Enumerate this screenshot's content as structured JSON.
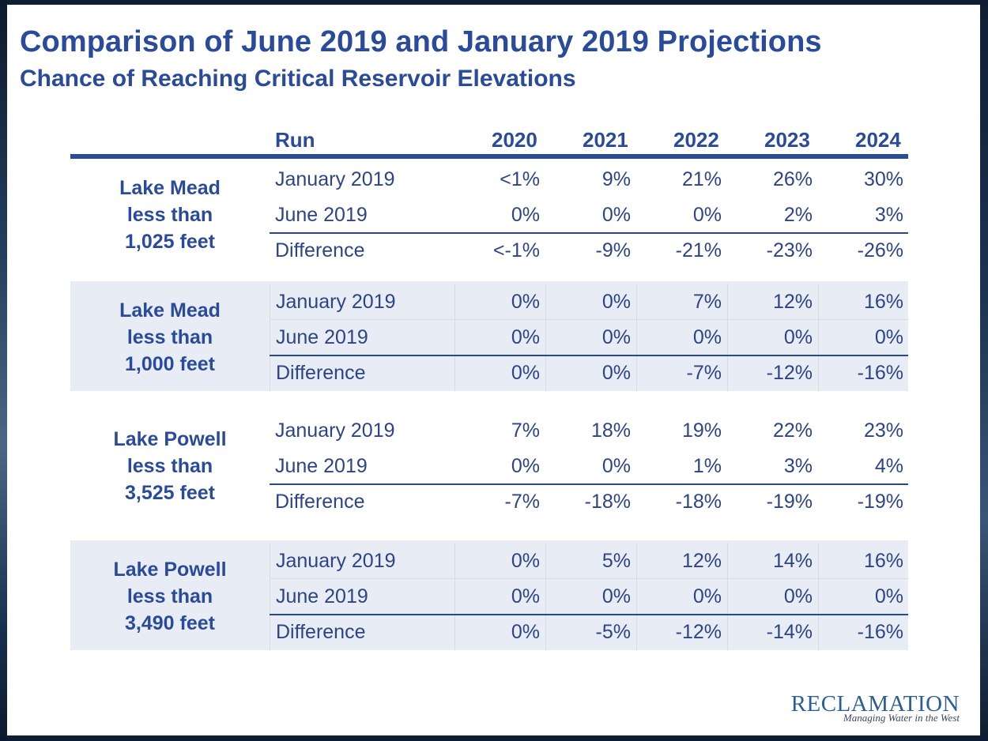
{
  "slide": {
    "title": "Comparison of June 2019 and January 2019 Projections",
    "subtitle": "Chance of Reaching Critical Reservoir Elevations"
  },
  "table": {
    "headers": {
      "run": "Run",
      "years": [
        "2020",
        "2021",
        "2022",
        "2023",
        "2024"
      ]
    },
    "groups": [
      {
        "label_lines": [
          "Lake Mead",
          "less than",
          "1,025 feet"
        ],
        "shaded": false,
        "rows": [
          {
            "run": "January 2019",
            "values": [
              "<1%",
              "9%",
              "21%",
              "26%",
              "30%"
            ]
          },
          {
            "run": "June 2019",
            "values": [
              "0%",
              "0%",
              "0%",
              "2%",
              "3%"
            ]
          },
          {
            "run": "Difference",
            "values": [
              "<-1%",
              "-9%",
              "-21%",
              "-23%",
              "-26%"
            ]
          }
        ]
      },
      {
        "label_lines": [
          "Lake Mead",
          "less than",
          "1,000 feet"
        ],
        "shaded": true,
        "rows": [
          {
            "run": "January 2019",
            "values": [
              "0%",
              "0%",
              "7%",
              "12%",
              "16%"
            ]
          },
          {
            "run": "June 2019",
            "values": [
              "0%",
              "0%",
              "0%",
              "0%",
              "0%"
            ]
          },
          {
            "run": "Difference",
            "values": [
              "0%",
              "0%",
              "-7%",
              "-12%",
              "-16%"
            ]
          }
        ]
      },
      {
        "label_lines": [
          "Lake Powell",
          "less than",
          "3,525 feet"
        ],
        "shaded": false,
        "rows": [
          {
            "run": "January 2019",
            "values": [
              "7%",
              "18%",
              "19%",
              "22%",
              "23%"
            ]
          },
          {
            "run": "June 2019",
            "values": [
              "0%",
              "0%",
              "1%",
              "3%",
              "4%"
            ]
          },
          {
            "run": "Difference",
            "values": [
              "-7%",
              "-18%",
              "-18%",
              "-19%",
              "-19%"
            ]
          }
        ]
      },
      {
        "label_lines": [
          "Lake Powell",
          "less than",
          "3,490 feet"
        ],
        "shaded": true,
        "rows": [
          {
            "run": "January 2019",
            "values": [
              "0%",
              "5%",
              "12%",
              "14%",
              "16%"
            ]
          },
          {
            "run": "June 2019",
            "values": [
              "0%",
              "0%",
              "0%",
              "0%",
              "0%"
            ]
          },
          {
            "run": "Difference",
            "values": [
              "0%",
              "-5%",
              "-12%",
              "-14%",
              "-16%"
            ]
          }
        ]
      }
    ]
  },
  "logo": {
    "name": "RECLAMATION",
    "tagline": "Managing Water in the West"
  },
  "colors": {
    "heading_blue": "#2a4a9a",
    "cell_text": "#2d4485",
    "shade": "#e8ecf4"
  }
}
